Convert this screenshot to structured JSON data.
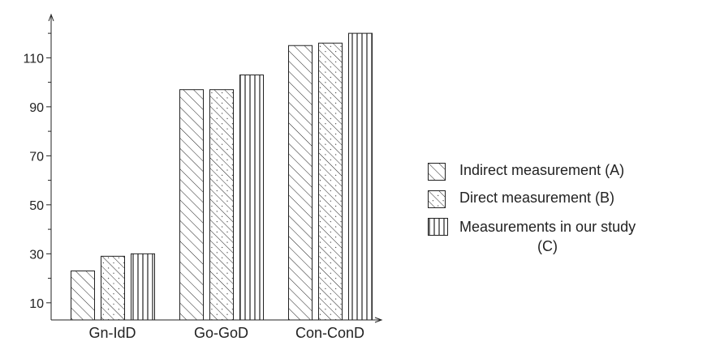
{
  "chart_data": {
    "type": "bar",
    "categories": [
      "Gn-IdD",
      "Go-GoD",
      "Con-ConD"
    ],
    "series": [
      {
        "name": "Indirect measurement (A)",
        "values": [
          23,
          97,
          115
        ]
      },
      {
        "name": "Direct measurement (B)",
        "values": [
          29,
          97,
          116
        ]
      },
      {
        "name": "Measurements in our study (C)",
        "values": [
          30,
          103,
          120
        ]
      }
    ],
    "y_ticks": [
      "10",
      "30",
      "50",
      "70",
      "90",
      "110"
    ],
    "ylim": [
      3,
      125
    ],
    "grid": false,
    "legend_position": "right",
    "patterns": [
      "diagonal-hatch",
      "diagonal-hatch-dotted",
      "vertical-lines"
    ]
  },
  "legend": {
    "items": [
      {
        "label": "Indirect measurement (A)"
      },
      {
        "label": "Direct measurement (B)"
      },
      {
        "label": "Measurements in our study",
        "label_line2": "(C)"
      }
    ]
  }
}
